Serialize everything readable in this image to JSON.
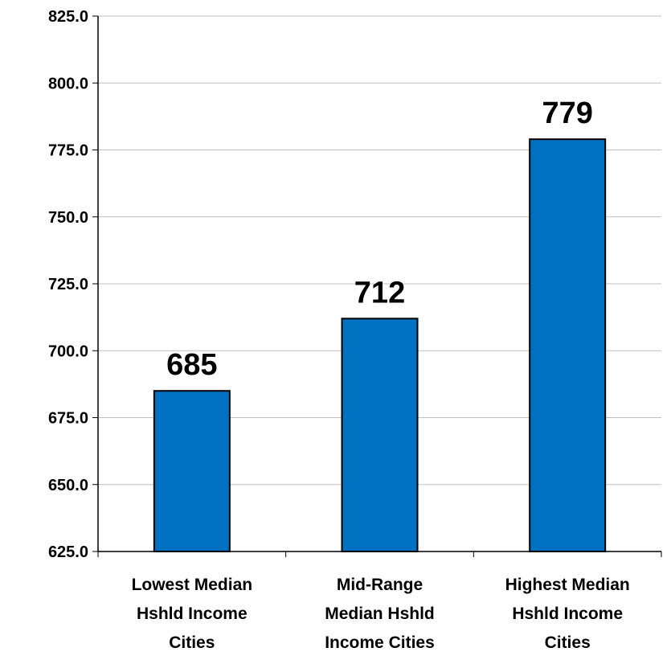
{
  "chart_data": {
    "type": "bar",
    "categories": [
      [
        "Lowest Median",
        "Hshld Income",
        "Cities"
      ],
      [
        "Mid-Range",
        "Median Hshld",
        "Income Cities"
      ],
      [
        "Highest Median",
        "Hshld Income",
        "Cities"
      ]
    ],
    "values": [
      685,
      712,
      779
    ],
    "data_labels": [
      "685",
      "712",
      "779"
    ],
    "ylim": [
      625,
      825
    ],
    "yticks": [
      625,
      650,
      675,
      700,
      725,
      750,
      775,
      800,
      825
    ],
    "ytick_labels": [
      "625.0",
      "650.0",
      "675.0",
      "700.0",
      "725.0",
      "750.0",
      "775.0",
      "800.0",
      "825.0"
    ],
    "grid": true,
    "title": "",
    "xlabel": "",
    "ylabel": "",
    "colors": {
      "bar": "#0070c0",
      "bar_edge": "#000000",
      "grid": "#c0c0c0",
      "axis": "#000000"
    }
  }
}
